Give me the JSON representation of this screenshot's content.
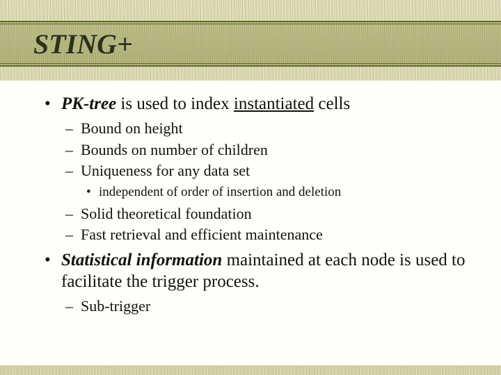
{
  "slide": {
    "title": "STING+",
    "title_color": "#2a331a",
    "title_fontsize": 40,
    "title_style": "bold-italic",
    "background_texture": "grass",
    "title_bar_border_color": "#5f6a2b",
    "content_bg": "#fefff8",
    "bullets": {
      "b1": {
        "prefix_em": "PK-tree",
        "mid": " is used to index ",
        "underlined": "instantiated",
        "suffix": " cells",
        "sub": {
          "s1": "Bound on height",
          "s2": "Bounds on number of children",
          "s3": "Uniqueness for any data set",
          "s3_sub": "independent of order of insertion and deletion",
          "s4": "Solid theoretical foundation",
          "s5": "Fast retrieval and efficient maintenance"
        }
      },
      "b2": {
        "prefix_em": "Statistical information",
        "rest": " maintained at each node is used to facilitate the trigger process.",
        "sub": {
          "s1": "Sub-trigger"
        }
      }
    },
    "fonts": {
      "body_family": "Times New Roman",
      "lvl1_size": 25,
      "lvl2_size": 22,
      "lvl3_size": 19
    },
    "bullet_glyphs": {
      "lvl1": "•",
      "lvl2": "–",
      "lvl3": "•"
    }
  }
}
